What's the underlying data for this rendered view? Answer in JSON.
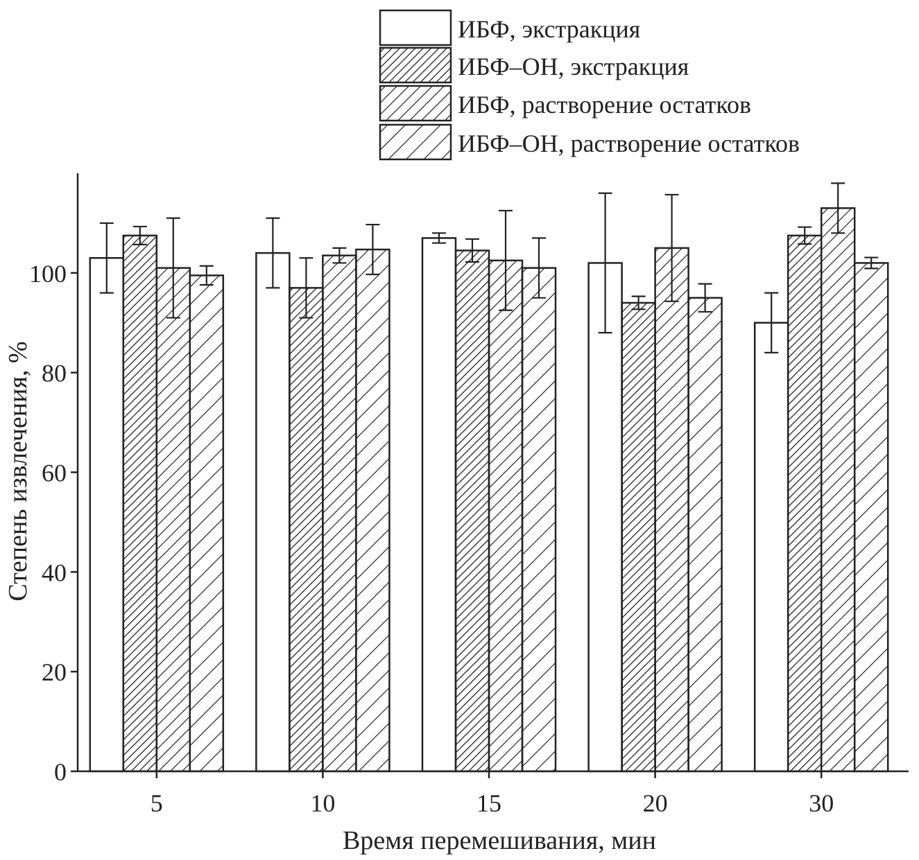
{
  "chart_data": {
    "type": "bar",
    "title": "",
    "xlabel": "Время перемешивания, мин",
    "ylabel": "Степень извлечения, %",
    "ylim": [
      0,
      120
    ],
    "yticks": [
      0,
      20,
      40,
      60,
      80,
      100
    ],
    "grid": false,
    "legend_placement": "top-right",
    "categories": [
      "5",
      "10",
      "15",
      "20",
      "30"
    ],
    "series": [
      {
        "name": "ИБФ, экстракция",
        "pattern": "none",
        "values": [
          103,
          104,
          107,
          102,
          90
        ],
        "errors": [
          7,
          7,
          1,
          14,
          6
        ]
      },
      {
        "name": "ИБФ–ОН, экстракция",
        "pattern": "dense-hatch",
        "values": [
          107.5,
          97,
          104.5,
          94,
          107.5
        ],
        "errors": [
          1.8,
          6,
          2.3,
          1.3,
          1.7
        ]
      },
      {
        "name": "ИБФ, растворение остатков",
        "pattern": "medium-hatch",
        "values": [
          101,
          103.5,
          102.5,
          105,
          113
        ],
        "errors": [
          10,
          1.5,
          10,
          10.7,
          5
        ]
      },
      {
        "name": "ИБФ–ОН, растворение остатков",
        "pattern": "wide-hatch",
        "values": [
          99.5,
          104.7,
          101,
          95,
          102
        ],
        "errors": [
          1.9,
          5,
          6,
          2.8,
          1.1
        ]
      }
    ],
    "colors": {
      "stroke": "#222222",
      "fill": "#ffffff"
    }
  }
}
